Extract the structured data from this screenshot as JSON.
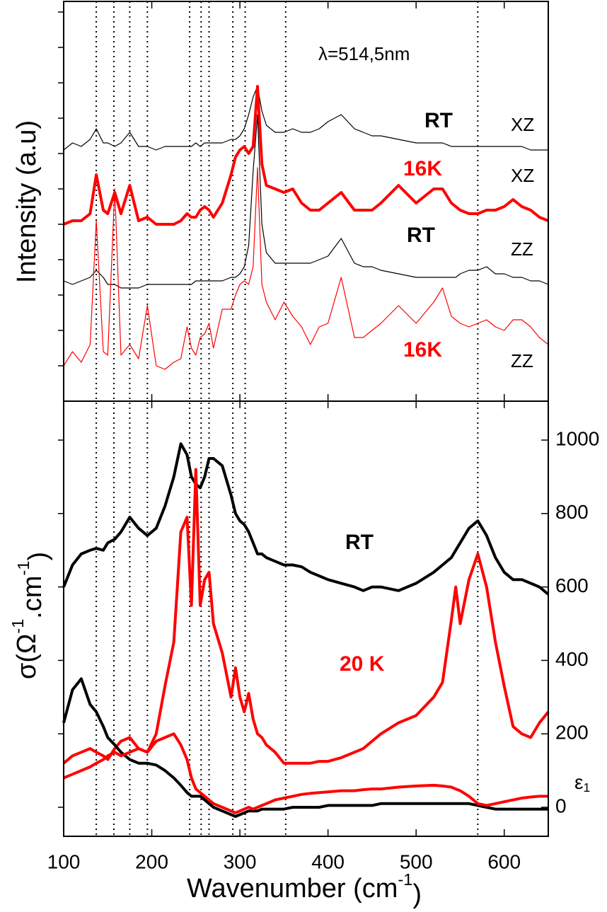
{
  "chart_data": [
    {
      "type": "line",
      "ylabel": "Intensity (a.u)",
      "xlim": [
        100,
        650
      ],
      "ylim": [
        0,
        11.3
      ],
      "annotations": [
        {
          "text": "λ=514,5nm",
          "color": "#000000"
        },
        {
          "text": "RT",
          "color": "#000000"
        },
        {
          "text": "XZ",
          "color": "#000000"
        },
        {
          "text": "16K",
          "color": "#ff0000"
        },
        {
          "text": "XZ",
          "color": "#000000"
        },
        {
          "text": "RT",
          "color": "#000000"
        },
        {
          "text": "ZZ",
          "color": "#000000"
        },
        {
          "text": "16K",
          "color": "#ff0000"
        },
        {
          "text": "ZZ",
          "color": "#000000"
        }
      ],
      "x": [
        100,
        110,
        120,
        130,
        137,
        145,
        150,
        158,
        165,
        175,
        185,
        195,
        205,
        215,
        225,
        233,
        240,
        245,
        250,
        255,
        260,
        265,
        270,
        280,
        290,
        295,
        300,
        305,
        310,
        315,
        320,
        325,
        330,
        340,
        350,
        360,
        370,
        380,
        390,
        400,
        415,
        430,
        440,
        450,
        460,
        480,
        500,
        520,
        530,
        540,
        545,
        550,
        560,
        570,
        580,
        590,
        600,
        610,
        620,
        630,
        640,
        650
      ],
      "series": [
        {
          "color": "#000000",
          "width": 1.2,
          "values": [
            7.1,
            7.3,
            7.2,
            7.4,
            7.7,
            7.3,
            7.3,
            7.2,
            7.3,
            7.6,
            7.2,
            7.2,
            7.1,
            7.2,
            7.2,
            7.2,
            7.2,
            7.2,
            7.3,
            7.2,
            7.3,
            7.3,
            7.3,
            7.3,
            7.4,
            7.4,
            7.5,
            7.7,
            8.1,
            8.6,
            8.9,
            8.2,
            7.8,
            7.6,
            7.6,
            7.7,
            7.6,
            7.6,
            7.7,
            7.9,
            8.1,
            7.7,
            7.6,
            7.5,
            7.5,
            7.4,
            7.3,
            7.3,
            7.3,
            7.2,
            7.2,
            7.2,
            7.2,
            7.2,
            7.2,
            7.2,
            7.2,
            7.2,
            7.2,
            7.1,
            7.1,
            7.1
          ]
        },
        {
          "color": "#ff0000",
          "width": 4,
          "values": [
            5.0,
            5.1,
            5.1,
            5.3,
            6.4,
            5.4,
            5.3,
            5.9,
            5.3,
            6.1,
            5.1,
            5.2,
            5.0,
            5.0,
            5.0,
            5.1,
            5.3,
            5.2,
            5.2,
            5.4,
            5.5,
            5.4,
            5.2,
            5.6,
            6.4,
            6.9,
            7.1,
            7.2,
            7.0,
            7.2,
            8.9,
            6.7,
            6.1,
            6.0,
            5.9,
            6.0,
            5.6,
            5.4,
            5.4,
            5.6,
            5.9,
            5.4,
            5.4,
            5.4,
            5.6,
            6.1,
            5.6,
            6.0,
            6.0,
            5.6,
            5.5,
            5.4,
            5.3,
            5.3,
            5.4,
            5.4,
            5.5,
            5.7,
            5.5,
            5.4,
            5.2,
            5.1
          ]
        },
        {
          "color": "#000000",
          "width": 1.2,
          "values": [
            3.4,
            3.3,
            3.4,
            3.5,
            3.7,
            3.5,
            3.3,
            3.3,
            3.2,
            3.2,
            3.2,
            3.3,
            3.3,
            3.3,
            3.3,
            3.3,
            3.3,
            3.3,
            3.4,
            3.4,
            3.4,
            3.4,
            3.4,
            3.4,
            3.5,
            3.5,
            3.6,
            3.8,
            4.4,
            6.5,
            8.1,
            5.0,
            4.2,
            3.9,
            3.9,
            3.9,
            3.9,
            3.9,
            4.0,
            4.1,
            4.6,
            3.9,
            3.8,
            3.8,
            3.7,
            3.6,
            3.5,
            3.5,
            3.5,
            3.5,
            3.5,
            3.6,
            3.7,
            3.7,
            3.8,
            3.6,
            3.6,
            3.5,
            3.5,
            3.4,
            3.4,
            3.3
          ]
        },
        {
          "color": "#ff0000",
          "width": 1.2,
          "values": [
            1.0,
            1.4,
            1.1,
            1.6,
            5.1,
            1.4,
            1.3,
            6.0,
            1.3,
            1.6,
            1.2,
            2.7,
            1.0,
            0.9,
            1.1,
            1.2,
            2.1,
            1.5,
            1.3,
            1.8,
            1.9,
            2.2,
            1.5,
            2.6,
            2.6,
            3.0,
            3.3,
            3.4,
            3.3,
            3.8,
            6.6,
            3.3,
            2.8,
            2.3,
            2.8,
            2.4,
            2.1,
            1.6,
            2.1,
            2.2,
            3.5,
            1.8,
            1.8,
            2.0,
            2.2,
            2.7,
            2.2,
            2.8,
            3.2,
            2.4,
            2.3,
            2.2,
            2.1,
            2.2,
            2.3,
            2.1,
            2.0,
            2.3,
            2.3,
            2.1,
            1.8,
            1.6
          ]
        }
      ]
    },
    {
      "type": "line",
      "xlabel_parts": [
        "Wavenumber (cm",
        "-1",
        ")"
      ],
      "ylabel_parts": [
        "σ(Ω",
        "-1",
        ".cm",
        "-1",
        ")"
      ],
      "y2label_parts": [
        "ε",
        "1"
      ],
      "xlim": [
        100,
        650
      ],
      "xticks": [
        100,
        200,
        300,
        400,
        500,
        600
      ],
      "ylim": [
        -79,
        1106
      ],
      "yticks": [
        0,
        200,
        400,
        600,
        800,
        1000
      ],
      "vlines": [
        137,
        157,
        175,
        195,
        243,
        256,
        265,
        292,
        306,
        352,
        570
      ],
      "annotations": [
        {
          "text": "RT",
          "color": "#000000"
        },
        {
          "text": "20 K",
          "color": "#ff0000"
        }
      ],
      "x": [
        100,
        110,
        120,
        130,
        137,
        145,
        150,
        158,
        165,
        175,
        185,
        195,
        205,
        215,
        225,
        233,
        240,
        245,
        250,
        255,
        260,
        265,
        270,
        280,
        290,
        295,
        300,
        305,
        310,
        315,
        320,
        325,
        330,
        340,
        350,
        360,
        370,
        380,
        390,
        400,
        415,
        430,
        440,
        450,
        460,
        480,
        500,
        520,
        530,
        540,
        545,
        550,
        560,
        570,
        580,
        590,
        600,
        610,
        620,
        630,
        640,
        650
      ],
      "series": [
        {
          "color": "#000000",
          "width": 4,
          "values": [
            600,
            660,
            690,
            700,
            705,
            700,
            720,
            730,
            750,
            790,
            760,
            740,
            760,
            820,
            900,
            990,
            960,
            900,
            880,
            870,
            900,
            950,
            950,
            930,
            850,
            800,
            780,
            770,
            750,
            720,
            690,
            690,
            680,
            670,
            660,
            660,
            655,
            640,
            630,
            620,
            610,
            600,
            590,
            600,
            600,
            590,
            610,
            640,
            660,
            680,
            700,
            720,
            760,
            780,
            740,
            680,
            640,
            620,
            620,
            610,
            600,
            580
          ]
        },
        {
          "color": "#ff0000",
          "width": 4,
          "values": [
            120,
            140,
            150,
            160,
            150,
            140,
            130,
            160,
            180,
            190,
            160,
            150,
            200,
            330,
            450,
            750,
            790,
            550,
            920,
            550,
            620,
            640,
            500,
            420,
            300,
            380,
            300,
            260,
            310,
            240,
            200,
            190,
            170,
            150,
            120,
            120,
            120,
            120,
            125,
            125,
            135,
            150,
            160,
            180,
            200,
            230,
            250,
            300,
            340,
            510,
            600,
            500,
            620,
            690,
            600,
            450,
            330,
            220,
            200,
            190,
            230,
            260
          ]
        },
        {
          "color": "#000000",
          "width": 4,
          "values": [
            230,
            320,
            350,
            280,
            260,
            220,
            190,
            170,
            150,
            130,
            120,
            120,
            115,
            100,
            80,
            60,
            40,
            30,
            30,
            30,
            20,
            10,
            0,
            -10,
            -20,
            -25,
            -20,
            -15,
            -10,
            -10,
            -10,
            -5,
            -5,
            -5,
            -5,
            0,
            0,
            0,
            0,
            5,
            5,
            5,
            5,
            5,
            10,
            10,
            10,
            10,
            10,
            10,
            10,
            10,
            10,
            5,
            0,
            -5,
            -5,
            -5,
            -5,
            -5,
            -5,
            -5
          ]
        },
        {
          "color": "#ff0000",
          "width": 4,
          "values": [
            80,
            90,
            100,
            110,
            120,
            130,
            140,
            150,
            140,
            150,
            160,
            150,
            180,
            190,
            200,
            170,
            130,
            80,
            50,
            40,
            30,
            20,
            10,
            0,
            -10,
            -15,
            -10,
            -5,
            0,
            -5,
            0,
            5,
            10,
            20,
            25,
            30,
            35,
            38,
            40,
            42,
            45,
            45,
            48,
            50,
            50,
            55,
            58,
            60,
            58,
            55,
            50,
            45,
            30,
            10,
            5,
            10,
            15,
            20,
            25,
            28,
            30,
            30
          ]
        }
      ]
    }
  ]
}
